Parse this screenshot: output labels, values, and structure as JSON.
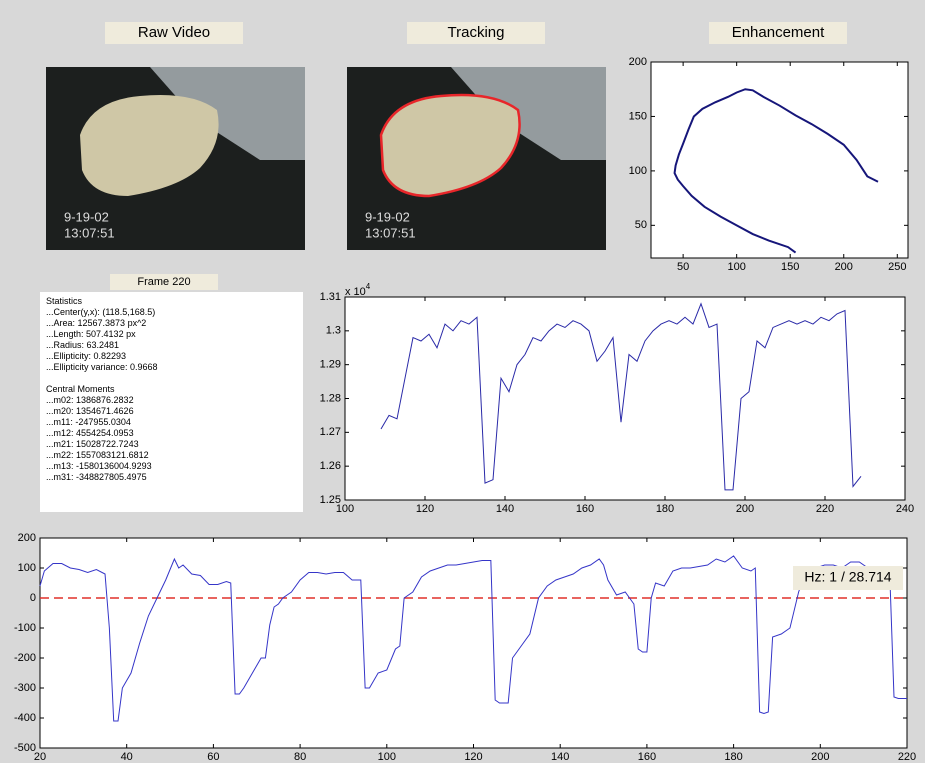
{
  "header": {
    "raw_video": "Raw Video",
    "tracking": "Tracking",
    "enhancement": "Enhancement"
  },
  "video": {
    "date": "9-19-02",
    "time": "13:07:51"
  },
  "frame_label": "Frame  220",
  "statistics": {
    "title": "Statistics",
    "lines": [
      "...Center(y,x):  (118.5,168.5)",
      "...Area:  12567.3873 px^2",
      "...Length:  507.4132 px",
      "...Radius:  63.2481",
      "...Ellipticity:  0.82293",
      "...Ellipticity variance:  0.9668"
    ],
    "moments_title": "Central Moments",
    "moments": [
      "...m02:  1386876.2832",
      "...m20:  1354671.4626",
      "...m11:  -247955.0304",
      "...m12:  4554254.0953",
      "...m21:  15028722.7243",
      "...m22:  1557083121.6812",
      "...m13:  -1580136004.9293",
      "...m31:  -348827805.4975"
    ]
  },
  "chart_data": [
    {
      "type": "line",
      "xlim": [
        20,
        260
      ],
      "ylim": [
        20,
        200
      ],
      "xticks": [
        50,
        100,
        150,
        200,
        250
      ],
      "yticks": [
        50,
        100,
        150,
        200
      ],
      "x": [
        155,
        148,
        130,
        115,
        100,
        85,
        70,
        58,
        50,
        45,
        42,
        43,
        46,
        50,
        55,
        60,
        68,
        80,
        92,
        100,
        108,
        115,
        125,
        140,
        155,
        170,
        185,
        200,
        212,
        222,
        232
      ],
      "series": [
        {
          "color": "#16167a",
          "values": [
            25,
            30,
            36,
            42,
            50,
            58,
            67,
            77,
            86,
            92,
            98,
            105,
            115,
            125,
            138,
            150,
            157,
            163,
            168,
            172,
            175,
            174,
            168,
            160,
            151,
            143,
            134,
            124,
            110,
            95,
            90
          ]
        }
      ]
    },
    {
      "type": "line",
      "xlim": [
        100,
        240
      ],
      "ylim": [
        1.25,
        1.31
      ],
      "xticks": [
        100,
        120,
        140,
        160,
        180,
        200,
        220,
        240
      ],
      "yticks": [
        1.25,
        1.26,
        1.27,
        1.28,
        1.29,
        1.3,
        1.31
      ],
      "y_multiplier": {
        "base": "x 10",
        "exponent": "4"
      },
      "x": [
        109,
        111,
        113,
        115,
        117,
        119,
        121,
        123,
        125,
        127,
        129,
        131,
        133,
        135,
        137,
        139,
        141,
        143,
        145,
        147,
        149,
        151,
        153,
        155,
        157,
        159,
        161,
        163,
        165,
        167,
        169,
        171,
        173,
        175,
        177,
        179,
        181,
        183,
        185,
        187,
        189,
        191,
        193,
        195,
        197,
        199,
        201,
        203,
        205,
        207,
        209,
        211,
        213,
        215,
        217,
        219,
        221,
        223,
        225,
        227,
        229
      ],
      "series": [
        {
          "color": "#2a2aa8",
          "values": [
            1.271,
            1.275,
            1.274,
            1.286,
            1.298,
            1.297,
            1.299,
            1.295,
            1.302,
            1.3,
            1.303,
            1.302,
            1.304,
            1.255,
            1.256,
            1.286,
            1.282,
            1.29,
            1.293,
            1.298,
            1.297,
            1.3,
            1.302,
            1.301,
            1.303,
            1.302,
            1.3,
            1.291,
            1.294,
            1.298,
            1.273,
            1.293,
            1.291,
            1.297,
            1.3,
            1.302,
            1.303,
            1.302,
            1.304,
            1.302,
            1.308,
            1.301,
            1.302,
            1.253,
            1.253,
            1.28,
            1.282,
            1.297,
            1.295,
            1.301,
            1.302,
            1.303,
            1.302,
            1.303,
            1.302,
            1.304,
            1.303,
            1.305,
            1.306,
            1.254,
            1.257
          ]
        }
      ]
    },
    {
      "type": "line",
      "xlim": [
        20,
        220
      ],
      "ylim": [
        -500,
        200
      ],
      "xticks": [
        20,
        40,
        60,
        80,
        100,
        120,
        140,
        160,
        180,
        200,
        220
      ],
      "yticks": [
        -500,
        -400,
        -300,
        -200,
        -100,
        0,
        100,
        200
      ],
      "hline": 0,
      "hline_color": "#e0302a",
      "annotation": "Hz: 1 / 28.714",
      "x": [
        20,
        21,
        23,
        25,
        27,
        29,
        31,
        33,
        35,
        36,
        37,
        38,
        39,
        41,
        43,
        45,
        47,
        49,
        51,
        52,
        53,
        55,
        57,
        59,
        61,
        63,
        64,
        65,
        66,
        67,
        69,
        71,
        72,
        73,
        74,
        75,
        76,
        78,
        80,
        82,
        84,
        86,
        88,
        90,
        92,
        94,
        95,
        96,
        98,
        100,
        102,
        103,
        104,
        106,
        108,
        110,
        112,
        114,
        116,
        118,
        120,
        122,
        124,
        125,
        126,
        127,
        128,
        129,
        131,
        133,
        135,
        137,
        139,
        141,
        143,
        145,
        147,
        149,
        150,
        151,
        153,
        155,
        157,
        158,
        159,
        160,
        161,
        162,
        164,
        166,
        168,
        170,
        172,
        174,
        176,
        178,
        180,
        182,
        184,
        185,
        186,
        187,
        188,
        189,
        191,
        193,
        195,
        197,
        199,
        201,
        203,
        205,
        207,
        209,
        211,
        213,
        215,
        216,
        217,
        218,
        220
      ],
      "series": [
        {
          "color": "#3535c8",
          "values": [
            40,
            90,
            115,
            115,
            100,
            95,
            85,
            95,
            80,
            -100,
            -410,
            -410,
            -300,
            -250,
            -150,
            -60,
            0,
            60,
            130,
            100,
            110,
            80,
            75,
            45,
            45,
            55,
            50,
            -320,
            -320,
            -300,
            -250,
            -200,
            -200,
            -90,
            -30,
            -20,
            0,
            20,
            60,
            85,
            85,
            80,
            85,
            85,
            60,
            60,
            -300,
            -300,
            -250,
            -240,
            -170,
            -160,
            0,
            20,
            70,
            90,
            100,
            110,
            110,
            115,
            120,
            125,
            125,
            -340,
            -350,
            -350,
            -350,
            -200,
            -160,
            -120,
            0,
            40,
            60,
            70,
            80,
            100,
            110,
            130,
            110,
            60,
            10,
            20,
            -20,
            -170,
            -180,
            -180,
            0,
            50,
            40,
            90,
            100,
            100,
            105,
            110,
            130,
            120,
            140,
            100,
            90,
            100,
            -380,
            -385,
            -380,
            -130,
            -120,
            -100,
            20,
            100,
            100,
            110,
            110,
            100,
            120,
            120,
            100,
            100,
            100,
            90,
            -330,
            -335,
            -335
          ]
        }
      ]
    }
  ]
}
